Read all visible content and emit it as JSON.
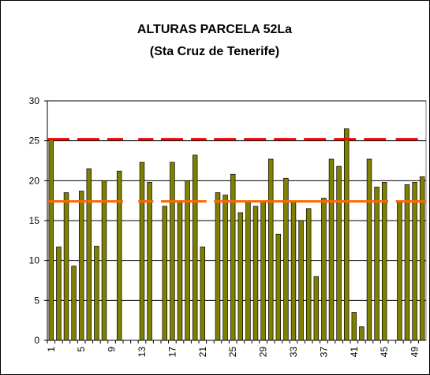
{
  "chart_data": {
    "type": "bar",
    "title": "ALTURAS PARCELA 52La",
    "subtitle": "(Sta Cruz de Tenerife)",
    "categories": [
      "1",
      null,
      null,
      null,
      "5",
      null,
      null,
      null,
      "9",
      null,
      null,
      null,
      "13",
      null,
      null,
      null,
      "17",
      null,
      null,
      null,
      "21",
      null,
      null,
      null,
      "25",
      null,
      null,
      null,
      "29",
      null,
      null,
      null,
      "33",
      null,
      null,
      null,
      "37",
      null,
      null,
      null,
      "41",
      null,
      null,
      null,
      "45",
      null,
      null,
      null,
      "49",
      null
    ],
    "values": [
      25.2,
      11.7,
      18.5,
      9.3,
      18.7,
      21.5,
      11.8,
      20.0,
      null,
      21.2,
      null,
      null,
      22.3,
      19.8,
      null,
      16.8,
      22.3,
      17.3,
      20.0,
      23.2,
      11.7,
      null,
      18.5,
      18.2,
      20.8,
      16.0,
      17.3,
      16.8,
      17.3,
      22.7,
      13.3,
      20.3,
      17.3,
      15.0,
      16.5,
      8.0,
      17.8,
      22.7,
      21.8,
      26.5,
      3.5,
      1.7,
      22.7,
      19.2,
      19.8,
      null,
      17.3,
      19.5,
      19.8,
      20.5
    ],
    "color": "#808000",
    "lines": [
      {
        "color": "#ff0000",
        "dashed": true,
        "values": [
          25.2,
          25.2,
          25.2,
          25.2,
          25.2,
          25.2,
          25.2,
          25.2,
          25.2,
          25.2,
          null,
          null,
          25.2,
          25.2,
          null,
          25.2,
          25.2,
          25.2,
          25.2,
          25.2,
          25.2,
          null,
          25.2,
          25.2,
          25.2,
          25.2,
          25.2,
          25.2,
          25.2,
          25.2,
          25.2,
          25.2,
          25.2,
          25.2,
          25.2,
          25.2,
          25.2,
          25.2,
          25.2,
          25.2,
          25.2,
          25.2,
          25.2,
          25.2,
          25.2,
          null,
          25.2,
          25.2,
          25.2,
          25.2
        ]
      },
      {
        "color": "#ff6600",
        "dashed": false,
        "values": [
          17.4,
          17.4,
          17.4,
          17.4,
          17.4,
          17.4,
          17.4,
          17.4,
          17.4,
          17.4,
          null,
          null,
          17.4,
          17.4,
          null,
          17.4,
          17.4,
          17.4,
          17.4,
          17.4,
          17.4,
          null,
          17.4,
          17.4,
          17.4,
          17.4,
          17.4,
          17.4,
          17.4,
          17.4,
          17.4,
          17.4,
          17.4,
          17.4,
          17.4,
          17.4,
          17.4,
          17.4,
          17.4,
          17.4,
          17.4,
          17.4,
          17.4,
          17.4,
          17.4,
          null,
          17.4,
          17.4,
          17.4,
          17.4
        ]
      }
    ],
    "ylim": [
      0,
      30
    ],
    "yticks": [
      0,
      5,
      10,
      15,
      20,
      25,
      30
    ],
    "grid": true
  }
}
